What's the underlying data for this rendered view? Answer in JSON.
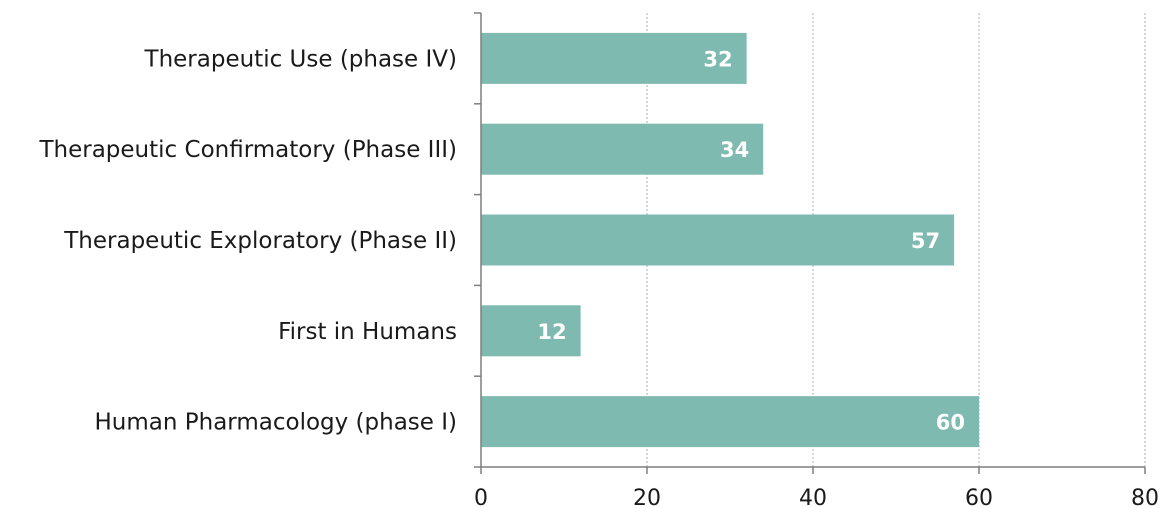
{
  "chart_data": {
    "type": "bar",
    "orientation": "horizontal",
    "categories": [
      "Therapeutic Use (phase IV)",
      "Therapeutic Confirmatory (Phase III)",
      "Therapeutic Exploratory (Phase II)",
      "First in Humans",
      "Human Pharmacology (phase I)"
    ],
    "values": [
      32,
      34,
      57,
      12,
      60
    ],
    "xlim": [
      0,
      80
    ],
    "x_ticks": [
      0,
      20,
      40,
      60,
      80
    ],
    "grid": "vertical, dashed",
    "bar_color": "#7fbab0",
    "data_labels": true
  }
}
